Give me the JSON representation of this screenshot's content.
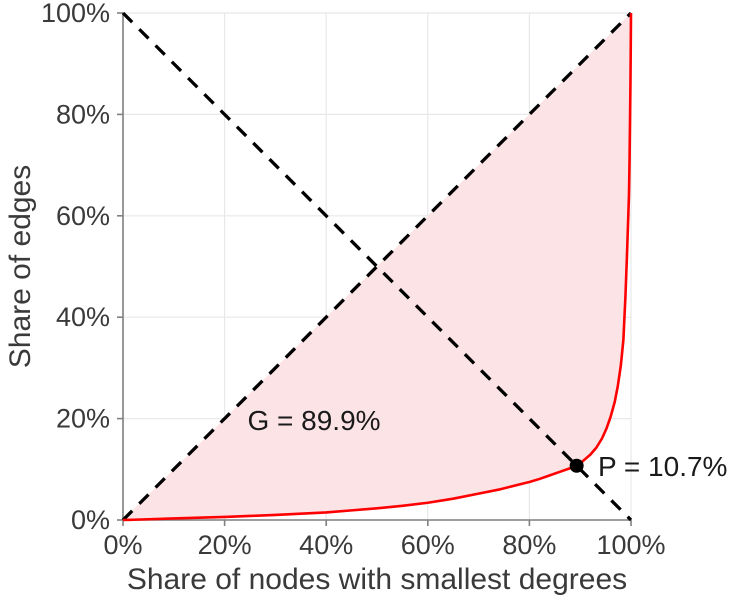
{
  "chart_data": {
    "type": "line",
    "title": "",
    "xlabel": "Share of nodes with smallest degrees",
    "ylabel": "Share of edges",
    "xlim": [
      0,
      100
    ],
    "ylim": [
      0,
      100
    ],
    "grid": true,
    "legend": "none",
    "tick_values": [
      0,
      20,
      40,
      60,
      80,
      100
    ],
    "x_tick_labels": [
      "0%",
      "20%",
      "40%",
      "60%",
      "80%",
      "100%"
    ],
    "y_tick_labels": [
      "0%",
      "20%",
      "40%",
      "60%",
      "80%",
      "100%"
    ],
    "series": [
      {
        "name": "lorenz-curve",
        "style": "solid",
        "color": "#ff0000",
        "points": [
          [
            0,
            0
          ],
          [
            2,
            0.05
          ],
          [
            5,
            0.15
          ],
          [
            10,
            0.3
          ],
          [
            15,
            0.45
          ],
          [
            20,
            0.6
          ],
          [
            25,
            0.8
          ],
          [
            30,
            1.0
          ],
          [
            35,
            1.25
          ],
          [
            40,
            1.5
          ],
          [
            45,
            1.9
          ],
          [
            50,
            2.3
          ],
          [
            55,
            2.8
          ],
          [
            60,
            3.4
          ],
          [
            65,
            4.2
          ],
          [
            70,
            5.2
          ],
          [
            74,
            6.0
          ],
          [
            78,
            7.0
          ],
          [
            80,
            7.5
          ],
          [
            82,
            8.1
          ],
          [
            84,
            8.8
          ],
          [
            86,
            9.5
          ],
          [
            88,
            10.2
          ],
          [
            89.3,
            10.7
          ],
          [
            90.5,
            11.6
          ],
          [
            92,
            12.9
          ],
          [
            93.2,
            14.3
          ],
          [
            94.3,
            16.1
          ],
          [
            95.2,
            18.1
          ],
          [
            96,
            20.4
          ],
          [
            96.8,
            23.3
          ],
          [
            97.4,
            26.4
          ],
          [
            98,
            30.5
          ],
          [
            98.5,
            35.5
          ],
          [
            98.9,
            44
          ],
          [
            99.2,
            52
          ],
          [
            99.4,
            58
          ],
          [
            99.6,
            64
          ],
          [
            99.7,
            70
          ],
          [
            99.8,
            78
          ],
          [
            99.9,
            87
          ],
          [
            99.95,
            93
          ],
          [
            100,
            100
          ]
        ]
      },
      {
        "name": "equality-line",
        "style": "dashed",
        "color": "#000000",
        "points": [
          [
            0,
            0
          ],
          [
            100,
            100
          ]
        ]
      },
      {
        "name": "anti-diagonal-line",
        "style": "dashed",
        "color": "#000000",
        "points": [
          [
            0,
            100
          ],
          [
            100,
            0
          ]
        ]
      }
    ],
    "gini_area": {
      "description": "region between equality line and lorenz curve",
      "fill": "#fce3e6"
    },
    "point_marker": {
      "x": 89.3,
      "y": 10.7,
      "color": "#000000"
    },
    "annotations": [
      {
        "id": "gini-label",
        "text": "G = 89.9%",
        "x": 37.6,
        "y": 19.7,
        "anchor": "middle"
      },
      {
        "id": "p-label",
        "text": "P = 10.7%",
        "x": 93.5,
        "y": 10.65,
        "anchor": "start"
      }
    ],
    "gini_value": "89.9%",
    "p_value": "10.7%",
    "colors": {
      "curve": "#ff0000",
      "area_fill": "#fce3e6",
      "dashed_lines": "#000000",
      "grid": "#e8e8e8",
      "axis": "#808080",
      "text": "#3a3a3a",
      "annotation_text": "#1a1a1a",
      "background": "#ffffff"
    }
  }
}
